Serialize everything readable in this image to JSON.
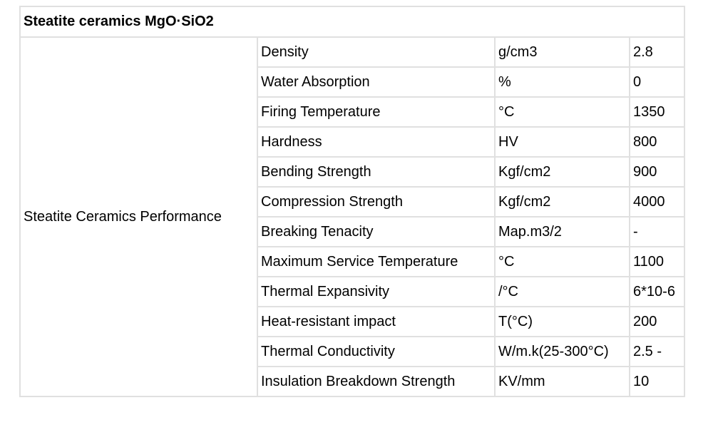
{
  "table": {
    "title": "Steatite ceramics MgO·SiO2",
    "group_label": "Steatite Ceramics Performance",
    "rows": [
      {
        "property": "Density",
        "unit": "g/cm3",
        "value": "2.8"
      },
      {
        "property": "Water Absorption",
        "unit": "%",
        "value": "0"
      },
      {
        "property": "Firing Temperature",
        "unit": "°C",
        "value": "1350"
      },
      {
        "property": "Hardness",
        "unit": "HV",
        "value": "800"
      },
      {
        "property": "Bending Strength",
        "unit": "Kgf/cm2",
        "value": "900"
      },
      {
        "property": "Compression Strength",
        "unit": "Kgf/cm2",
        "value": "4000"
      },
      {
        "property": "Breaking Tenacity",
        "unit": "Map.m3/2",
        "value": "-"
      },
      {
        "property": "Maximum Service Temperature",
        "unit": "°C",
        "value": "1100"
      },
      {
        "property": "Thermal Expansivity",
        "unit": "/°C",
        "value": "6*10-6"
      },
      {
        "property": "Heat-resistant impact",
        "unit": "T(°C)",
        "value": "200"
      },
      {
        "property": "Thermal Conductivity",
        "unit": "W/m.k(25-300°C)",
        "value": "2.5 -"
      },
      {
        "property": "Insulation Breakdown Strength",
        "unit": "KV/mm",
        "value": "10"
      }
    ]
  }
}
